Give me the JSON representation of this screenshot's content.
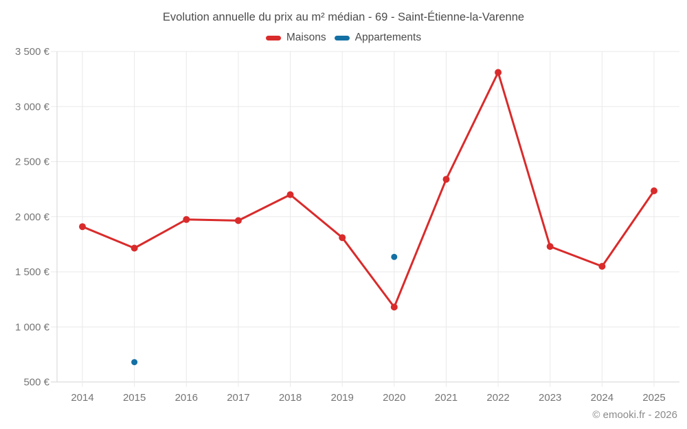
{
  "title": "Evolution annuelle du prix au m² médian - 69 - Saint-Étienne-la-Varenne",
  "legend": {
    "items": [
      {
        "label": "Maisons",
        "color": "#d92b2b"
      },
      {
        "label": "Appartements",
        "color": "#1470a4"
      }
    ]
  },
  "watermark": "© emooki.fr - 2026",
  "chart_data": {
    "type": "line",
    "x": [
      2014,
      2015,
      2016,
      2017,
      2018,
      2019,
      2020,
      2021,
      2022,
      2023,
      2024,
      2025
    ],
    "series": [
      {
        "name": "Maisons",
        "color": "#d92b2b",
        "show_line": true,
        "marker_radius": 5,
        "values": [
          1910,
          1715,
          1975,
          1965,
          2200,
          1810,
          1180,
          2340,
          3310,
          1730,
          1550,
          2235
        ]
      },
      {
        "name": "Appartements",
        "color": "#1470a4",
        "show_line": false,
        "marker_radius": 4.5,
        "values": [
          null,
          680,
          null,
          null,
          null,
          null,
          1635,
          null,
          null,
          null,
          null,
          null
        ]
      }
    ],
    "title": "Evolution annuelle du prix au m² médian - 69 - Saint-Étienne-la-Varenne",
    "xlabel": "",
    "ylabel": "",
    "ylim": [
      500,
      3500
    ],
    "ytick_values": [
      500,
      1000,
      1500,
      2000,
      2500,
      3000,
      3500
    ],
    "ytick_labels": [
      "500 €",
      "1 000 €",
      "1 500 €",
      "2 000 €",
      "2 500 €",
      "3 000 €",
      "3 500 €"
    ],
    "grid": true,
    "legend_position": "top",
    "grid_color": "#e9e9e9",
    "axis_color": "#d6d6d6"
  }
}
